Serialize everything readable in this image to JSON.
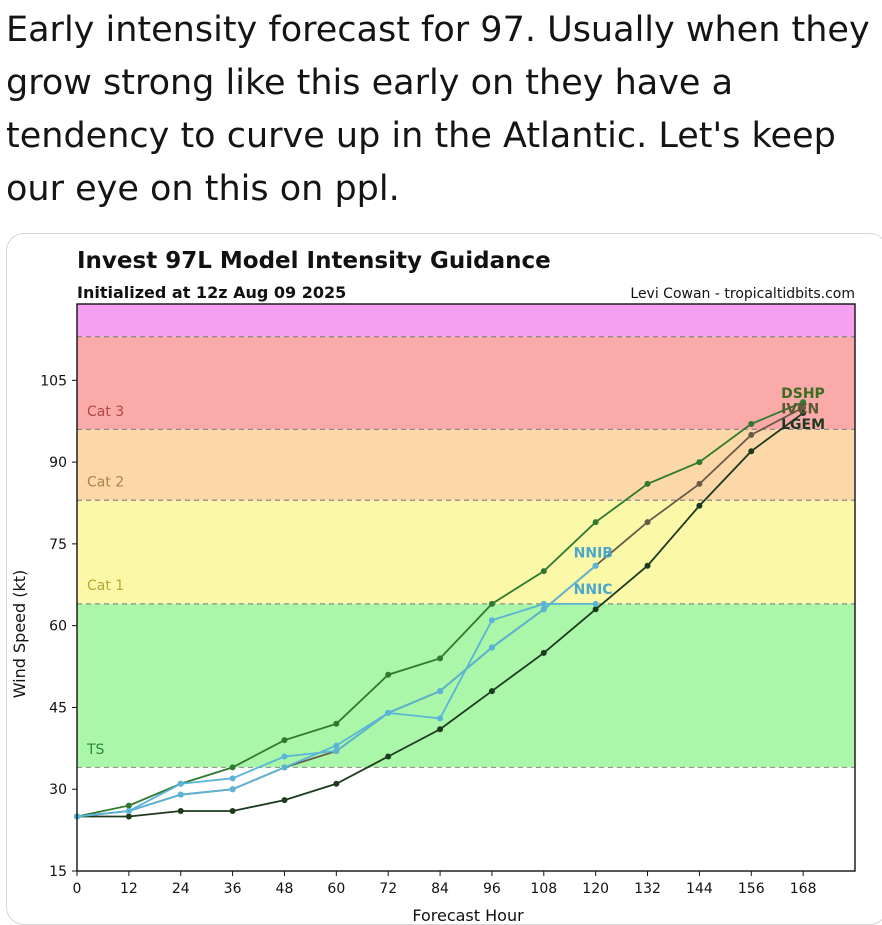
{
  "post": {
    "text": "Early intensity forecast for 97. Usually when they grow strong like this early on they have a tendency to curve up in the Atlantic. Let's keep our eye on this on ppl."
  },
  "chart_data": {
    "type": "line",
    "title": "Invest 97L Model Intensity Guidance",
    "subtitle": "Initialized at 12z Aug 09 2025",
    "credit": "Levi Cowan - tropicaltidbits.com",
    "ylabel": "Wind Speed (kt)",
    "xlabel": "Forecast Hour",
    "xlim": [
      0,
      180
    ],
    "ylim": [
      15,
      119
    ],
    "x_ticks": [
      0,
      12,
      24,
      36,
      48,
      60,
      72,
      84,
      96,
      108,
      120,
      132,
      144,
      156,
      168
    ],
    "y_ticks": [
      15,
      30,
      45,
      60,
      75,
      90,
      105
    ],
    "bands": [
      {
        "label": "TS",
        "from": 34,
        "to": 64,
        "color": "#aaf7aa"
      },
      {
        "label": "Cat 1",
        "from": 64,
        "to": 83,
        "color": "#fbf9a8"
      },
      {
        "label": "Cat 2",
        "from": 83,
        "to": 96,
        "color": "#fcd8a8"
      },
      {
        "label": "Cat 3",
        "from": 96,
        "to": 113,
        "color": "#fbaaaa"
      },
      {
        "label": "",
        "from": 113,
        "to": 119,
        "color": "#f5a0f0"
      }
    ],
    "band_label_colors": {
      "TS": "#2e8b2e",
      "Cat 1": "#b5a832",
      "Cat 2": "#a8864a",
      "Cat 3": "#b04848"
    },
    "series": [
      {
        "name": "DSHP",
        "color": "#2f7a2f",
        "label_color": "#3a6e1e",
        "label_at": 168,
        "points": [
          [
            0,
            25
          ],
          [
            12,
            27
          ],
          [
            24,
            31
          ],
          [
            36,
            34
          ],
          [
            48,
            39
          ],
          [
            60,
            42
          ],
          [
            72,
            51
          ],
          [
            84,
            54
          ],
          [
            96,
            64
          ],
          [
            108,
            70
          ],
          [
            120,
            79
          ],
          [
            132,
            86
          ],
          [
            144,
            90
          ],
          [
            156,
            97
          ],
          [
            168,
            101
          ]
        ]
      },
      {
        "name": "IVCN",
        "color": "#6a5a4a",
        "label_color": "#5a5a30",
        "label_at": 168,
        "points": [
          [
            0,
            25
          ],
          [
            12,
            26
          ],
          [
            24,
            29
          ],
          [
            36,
            30
          ],
          [
            48,
            34
          ],
          [
            60,
            37
          ],
          [
            72,
            44
          ],
          [
            84,
            48
          ],
          [
            96,
            56
          ],
          [
            108,
            63
          ],
          [
            120,
            71
          ],
          [
            132,
            79
          ],
          [
            144,
            86
          ],
          [
            156,
            95
          ],
          [
            168,
            100
          ]
        ]
      },
      {
        "name": "LGEM",
        "color": "#1e3a1e",
        "label_color": "#1e3a1e",
        "label_at": 168,
        "points": [
          [
            0,
            25
          ],
          [
            12,
            25
          ],
          [
            24,
            26
          ],
          [
            36,
            26
          ],
          [
            48,
            28
          ],
          [
            60,
            31
          ],
          [
            72,
            36
          ],
          [
            84,
            41
          ],
          [
            96,
            48
          ],
          [
            108,
            55
          ],
          [
            120,
            63
          ],
          [
            132,
            71
          ],
          [
            144,
            82
          ],
          [
            156,
            92
          ],
          [
            168,
            99
          ]
        ]
      },
      {
        "name": "NNIB",
        "color": "#5ab4d8",
        "label_color": "#4aa8cc",
        "label_at": 120,
        "points": [
          [
            0,
            25
          ],
          [
            12,
            26
          ],
          [
            24,
            31
          ],
          [
            36,
            32
          ],
          [
            48,
            36
          ],
          [
            60,
            37
          ],
          [
            72,
            44
          ],
          [
            84,
            48
          ],
          [
            96,
            56
          ],
          [
            108,
            63
          ],
          [
            120,
            71
          ]
        ]
      },
      {
        "name": "NNIC",
        "color": "#5ab4d8",
        "label_color": "#4aa8cc",
        "label_at": 120,
        "points": [
          [
            0,
            25
          ],
          [
            12,
            26
          ],
          [
            24,
            29
          ],
          [
            36,
            30
          ],
          [
            48,
            34
          ],
          [
            60,
            38
          ],
          [
            72,
            44
          ],
          [
            84,
            43
          ],
          [
            96,
            61
          ],
          [
            108,
            64
          ],
          [
            120,
            64
          ]
        ]
      }
    ]
  }
}
